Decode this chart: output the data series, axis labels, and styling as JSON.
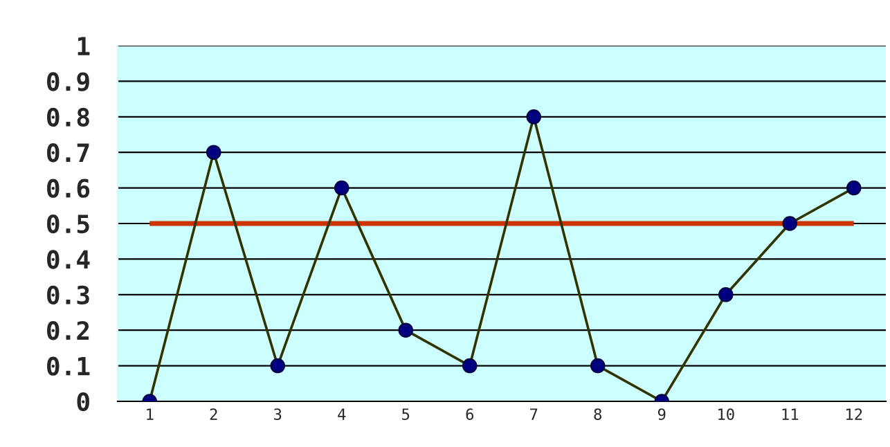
{
  "chart_data": {
    "type": "line",
    "categories": [
      "1",
      "2",
      "3",
      "4",
      "5",
      "6",
      "7",
      "8",
      "9",
      "10",
      "11",
      "12"
    ],
    "series": [
      {
        "color": "#333300",
        "values": [
          0,
          0.7,
          0.1,
          0.6,
          0.2,
          0.1,
          0.8,
          0.1,
          0,
          0.3,
          0.5,
          0.6
        ]
      }
    ],
    "marker": "circle",
    "ylim": [
      0,
      1
    ],
    "yticks": [
      0,
      0.1,
      0.2,
      0.3,
      0.4,
      0.5,
      0.6,
      0.7,
      0.8,
      0.9,
      1
    ],
    "grid": "y",
    "ref_lines": [
      {
        "axis": "y",
        "value": 0.5,
        "color": "#cc3300"
      }
    ]
  }
}
